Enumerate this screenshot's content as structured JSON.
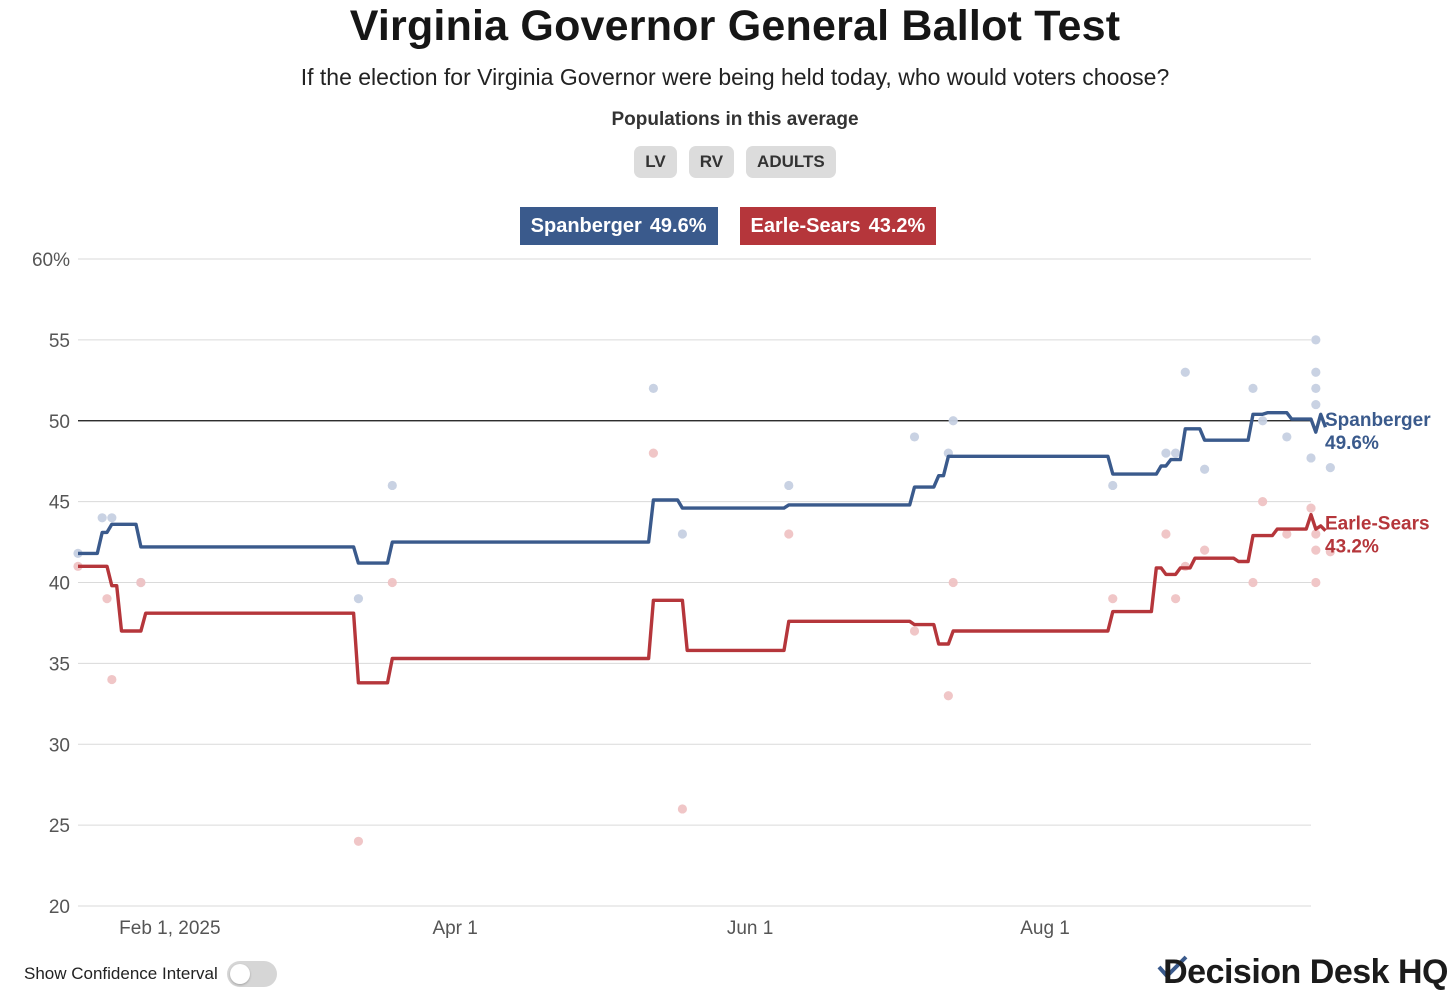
{
  "title": "Virginia Governor General Ballot Test",
  "subtitle": "If the election for Virginia Governor were being held today, who would voters choose?",
  "populations": {
    "label": "Populations in this average",
    "items": [
      "LV",
      "RV",
      "ADULTS"
    ]
  },
  "legend": [
    {
      "name": "Spanberger",
      "value": "49.6%",
      "color": "#3a5a8c"
    },
    {
      "name": "Earle-Sears",
      "value": "43.2%",
      "color": "#b5363b"
    }
  ],
  "controls": {
    "confidence_label": "Show Confidence Interval",
    "confidence_on": false
  },
  "brand": {
    "name": "Decision Desk HQ"
  },
  "chart_data": {
    "type": "line",
    "title": "Virginia Governor General Ballot Test",
    "xlabel": "",
    "ylabel": "",
    "x_domain": [
      "2025-01-13",
      "2025-09-25"
    ],
    "ylim": [
      20,
      60
    ],
    "y_ticks": [
      20,
      25,
      30,
      35,
      40,
      45,
      50,
      55,
      60
    ],
    "y_tick_labels": [
      "20",
      "25",
      "30",
      "35",
      "40",
      "45",
      "50",
      "55",
      "60%"
    ],
    "x_ticks": [
      {
        "date": "2025-02-01",
        "label": "Feb 1, 2025"
      },
      {
        "date": "2025-04-01",
        "label": "Apr 1"
      },
      {
        "date": "2025-06-01",
        "label": "Jun 1"
      },
      {
        "date": "2025-08-01",
        "label": "Aug 1"
      }
    ],
    "reference_line": 50,
    "series": [
      {
        "name": "Spanberger",
        "color": "#3a5a8c",
        "end_label": "49.6%",
        "average": [
          [
            "2025-01-13",
            41.8
          ],
          [
            "2025-01-17",
            41.8
          ],
          [
            "2025-01-18",
            43.1
          ],
          [
            "2025-01-19",
            43.1
          ],
          [
            "2025-01-20",
            43.6
          ],
          [
            "2025-01-25",
            43.6
          ],
          [
            "2025-01-26",
            42.2
          ],
          [
            "2025-03-11",
            42.2
          ],
          [
            "2025-03-12",
            41.2
          ],
          [
            "2025-03-18",
            41.2
          ],
          [
            "2025-03-19",
            42.5
          ],
          [
            "2025-05-11",
            42.5
          ],
          [
            "2025-05-12",
            45.1
          ],
          [
            "2025-05-17",
            45.1
          ],
          [
            "2025-05-18",
            44.6
          ],
          [
            "2025-06-08",
            44.6
          ],
          [
            "2025-06-09",
            44.8
          ],
          [
            "2025-07-04",
            44.8
          ],
          [
            "2025-07-05",
            45.9
          ],
          [
            "2025-07-09",
            45.9
          ],
          [
            "2025-07-10",
            46.6
          ],
          [
            "2025-07-11",
            46.6
          ],
          [
            "2025-07-12",
            47.8
          ],
          [
            "2025-08-14",
            47.8
          ],
          [
            "2025-08-15",
            46.7
          ],
          [
            "2025-08-24",
            46.7
          ],
          [
            "2025-08-25",
            47.2
          ],
          [
            "2025-08-26",
            47.2
          ],
          [
            "2025-08-27",
            47.6
          ],
          [
            "2025-08-29",
            47.6
          ],
          [
            "2025-08-30",
            49.5
          ],
          [
            "2025-09-02",
            49.5
          ],
          [
            "2025-09-03",
            48.8
          ],
          [
            "2025-09-12",
            48.8
          ],
          [
            "2025-09-13",
            50.4
          ],
          [
            "2025-09-15",
            50.4
          ],
          [
            "2025-09-16",
            50.5
          ],
          [
            "2025-09-20",
            50.5
          ],
          [
            "2025-09-21",
            50.1
          ],
          [
            "2025-09-25",
            50.1
          ],
          [
            "2025-09-26",
            49.3
          ],
          [
            "2025-09-27",
            50.4
          ],
          [
            "2025-09-28",
            49.6
          ]
        ],
        "polls": [
          [
            "2025-01-13",
            41.8
          ],
          [
            "2025-01-18",
            44
          ],
          [
            "2025-01-20",
            44
          ],
          [
            "2025-01-26",
            40
          ],
          [
            "2025-03-12",
            39
          ],
          [
            "2025-03-19",
            46
          ],
          [
            "2025-05-12",
            52
          ],
          [
            "2025-05-18",
            43
          ],
          [
            "2025-06-09",
            46
          ],
          [
            "2025-07-05",
            49
          ],
          [
            "2025-07-12",
            48
          ],
          [
            "2025-07-13",
            50
          ],
          [
            "2025-08-15",
            46
          ],
          [
            "2025-08-26",
            48
          ],
          [
            "2025-08-28",
            48
          ],
          [
            "2025-08-30",
            53
          ],
          [
            "2025-09-03",
            47
          ],
          [
            "2025-09-13",
            52
          ],
          [
            "2025-09-15",
            50
          ],
          [
            "2025-09-20",
            49
          ],
          [
            "2025-09-25",
            47.7
          ],
          [
            "2025-09-26",
            55
          ],
          [
            "2025-09-26",
            53
          ],
          [
            "2025-09-26",
            52
          ],
          [
            "2025-09-26",
            51
          ],
          [
            "2025-09-29",
            47.1
          ]
        ]
      },
      {
        "name": "Earle-Sears",
        "color": "#b5363b",
        "end_label": "43.2%",
        "average": [
          [
            "2025-01-13",
            41.0
          ],
          [
            "2025-01-19",
            41.0
          ],
          [
            "2025-01-20",
            39.8
          ],
          [
            "2025-01-21",
            39.8
          ],
          [
            "2025-01-22",
            37.0
          ],
          [
            "2025-01-26",
            37.0
          ],
          [
            "2025-01-27",
            38.1
          ],
          [
            "2025-03-11",
            38.1
          ],
          [
            "2025-03-12",
            33.8
          ],
          [
            "2025-03-18",
            33.8
          ],
          [
            "2025-03-19",
            35.3
          ],
          [
            "2025-05-11",
            35.3
          ],
          [
            "2025-05-12",
            38.9
          ],
          [
            "2025-05-18",
            38.9
          ],
          [
            "2025-05-19",
            35.8
          ],
          [
            "2025-06-08",
            35.8
          ],
          [
            "2025-06-09",
            37.6
          ],
          [
            "2025-07-04",
            37.6
          ],
          [
            "2025-07-05",
            37.4
          ],
          [
            "2025-07-09",
            37.4
          ],
          [
            "2025-07-10",
            36.2
          ],
          [
            "2025-07-12",
            36.2
          ],
          [
            "2025-07-13",
            37.0
          ],
          [
            "2025-08-14",
            37.0
          ],
          [
            "2025-08-15",
            38.2
          ],
          [
            "2025-08-23",
            38.2
          ],
          [
            "2025-08-24",
            40.9
          ],
          [
            "2025-08-25",
            40.9
          ],
          [
            "2025-08-26",
            40.5
          ],
          [
            "2025-08-28",
            40.5
          ],
          [
            "2025-08-29",
            40.9
          ],
          [
            "2025-08-31",
            40.9
          ],
          [
            "2025-09-01",
            41.5
          ],
          [
            "2025-09-09",
            41.5
          ],
          [
            "2025-09-10",
            41.3
          ],
          [
            "2025-09-12",
            41.3
          ],
          [
            "2025-09-13",
            42.9
          ],
          [
            "2025-09-17",
            42.9
          ],
          [
            "2025-09-18",
            43.3
          ],
          [
            "2025-09-24",
            43.3
          ],
          [
            "2025-09-25",
            44.2
          ],
          [
            "2025-09-26",
            43.3
          ],
          [
            "2025-09-27",
            43.5
          ],
          [
            "2025-09-28",
            43.2
          ]
        ],
        "polls": [
          [
            "2025-01-13",
            41
          ],
          [
            "2025-01-19",
            39
          ],
          [
            "2025-01-20",
            34
          ],
          [
            "2025-01-26",
            40
          ],
          [
            "2025-03-12",
            24
          ],
          [
            "2025-03-19",
            40
          ],
          [
            "2025-05-12",
            48
          ],
          [
            "2025-05-18",
            26
          ],
          [
            "2025-06-09",
            43
          ],
          [
            "2025-07-05",
            37
          ],
          [
            "2025-07-12",
            33
          ],
          [
            "2025-07-13",
            40
          ],
          [
            "2025-08-15",
            39
          ],
          [
            "2025-08-26",
            43
          ],
          [
            "2025-08-28",
            39
          ],
          [
            "2025-08-30",
            41
          ],
          [
            "2025-09-03",
            42
          ],
          [
            "2025-09-13",
            40
          ],
          [
            "2025-09-15",
            45
          ],
          [
            "2025-09-20",
            43
          ],
          [
            "2025-09-25",
            44.6
          ],
          [
            "2025-09-26",
            43
          ],
          [
            "2025-09-26",
            42
          ],
          [
            "2025-09-26",
            40
          ],
          [
            "2025-09-29",
            41.9
          ]
        ]
      }
    ]
  }
}
